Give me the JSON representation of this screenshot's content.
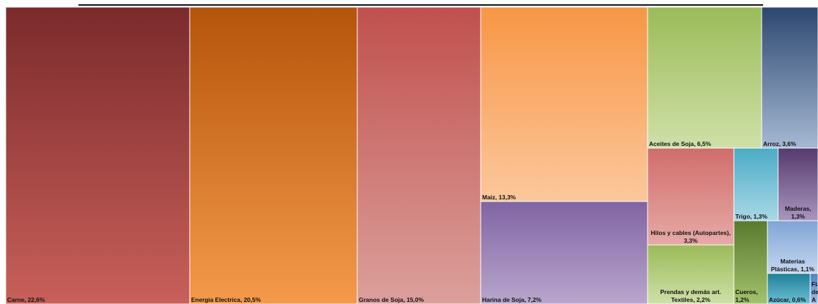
{
  "chart_data": {
    "type": "treemap",
    "title": "",
    "unit": "%",
    "items": [
      {
        "label": "Carne, 22,6%",
        "name": "Carne",
        "value": 22.6,
        "colors": [
          "#7b2a2c",
          "#c8605a"
        ]
      },
      {
        "label": "Energia Electrica, 20,5%",
        "name": "Energia Electrica",
        "value": 20.5,
        "colors": [
          "#b5540b",
          "#f49a4a"
        ]
      },
      {
        "label": "Granos de Soja, 15,0%",
        "name": "Granos de Soja",
        "value": 15.0,
        "colors": [
          "#c0504d",
          "#dba09c"
        ]
      },
      {
        "label": "Maiz, 13,3%",
        "name": "Maiz",
        "value": 13.3,
        "colors": [
          "#f79646",
          "#fbc89c"
        ]
      },
      {
        "label": "Harina de Soja, 7,2%",
        "name": "Harina de Soja",
        "value": 7.2,
        "colors": [
          "#8064a2",
          "#b9a6cc"
        ]
      },
      {
        "label": "Aceites de Soja, 6,5%",
        "name": "Aceites de Soja",
        "value": 6.5,
        "colors": [
          "#9bbb59",
          "#cfe0a8"
        ]
      },
      {
        "label": "Arroz, 3,6%",
        "name": "Arroz",
        "value": 3.6,
        "colors": [
          "#2c4770",
          "#a6b9d3"
        ]
      },
      {
        "label": "Hilos y cables (Autopartes), 3,3%",
        "name": "Hilos y cables (Autopartes)",
        "value": 3.3,
        "colors": [
          "#d06d6b",
          "#e6aaa6"
        ]
      },
      {
        "label": "Prendas y demás art. Textiles, 2,2%",
        "name": "Prendas y demás art. Textiles",
        "value": 2.2,
        "colors": [
          "#9bbb59",
          "#cfe0a8"
        ]
      },
      {
        "label": "Trigo, 1,3%",
        "name": "Trigo",
        "value": 1.3,
        "colors": [
          "#4bacc6",
          "#a9d8e6"
        ]
      },
      {
        "label": "Maderas, 1,3%",
        "name": "Maderas",
        "value": 1.3,
        "colors": [
          "#553a6e",
          "#a996be"
        ]
      },
      {
        "label": "Cueros, 1,2%",
        "name": "Cueros",
        "value": 1.2,
        "colors": [
          "#5a7a2e",
          "#a3c26c"
        ]
      },
      {
        "label": "Materias Plásticas, 1,1%",
        "name": "Materias Plásticas",
        "value": 1.1,
        "colors": [
          "#7fa4d6",
          "#c5d7ee"
        ]
      },
      {
        "label": "Azúcar, 0,6%",
        "name": "Azúcar",
        "value": 0.6,
        "colors": [
          "#1f7f96",
          "#6fc2d6"
        ]
      },
      {
        "label": "Fi... de A...",
        "name": "Fi... de A...",
        "value": null,
        "colors": [
          "#4f81bd",
          "#9fbde0"
        ]
      }
    ]
  }
}
